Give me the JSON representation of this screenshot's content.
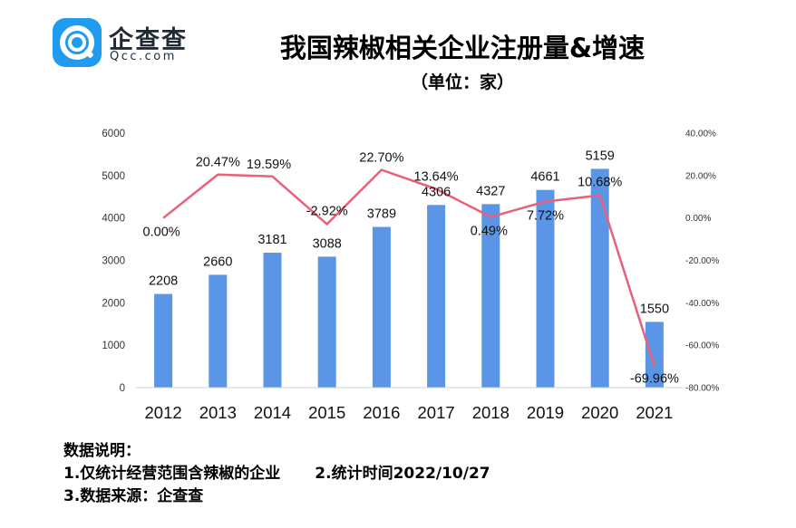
{
  "brand": {
    "name_cn": "企查查",
    "name_en": "Qcc.com"
  },
  "header": {
    "title": "我国辣椒相关企业注册量&增速",
    "subtitle": "（单位：家）"
  },
  "chart_data": {
    "type": "bar",
    "categories": [
      "2012",
      "2013",
      "2014",
      "2015",
      "2016",
      "2017",
      "2018",
      "2019",
      "2020",
      "2021"
    ],
    "series": [
      {
        "values": [
          2208,
          2660,
          3181,
          3088,
          3789,
          4306,
          4327,
          4661,
          5159,
          1550
        ],
        "color": "#5b95e5",
        "labels": [
          "2208",
          "2660",
          "3181",
          "3088",
          "3789",
          "4306",
          "4327",
          "4661",
          "5159",
          "1550"
        ]
      },
      {
        "type": "line",
        "values": [
          0.0,
          20.47,
          19.59,
          -2.92,
          22.7,
          13.64,
          0.49,
          7.72,
          10.68,
          -69.96
        ],
        "color": "#e8607a",
        "labels": [
          "0.00%",
          "20.47%",
          "19.59%",
          "-2.92%",
          "22.70%",
          "13.64%",
          "0.49%",
          "7.72%",
          "10.68%",
          "-69.96%"
        ]
      }
    ],
    "left_axis": {
      "ylim": [
        0,
        6000
      ],
      "ticks": [
        "0",
        "1000",
        "2000",
        "3000",
        "4000",
        "5000",
        "6000"
      ]
    },
    "right_axis": {
      "ylim": [
        -80,
        40
      ],
      "ticks": [
        "-80.00%",
        "-60.00%",
        "-40.00%",
        "-20.00%",
        "0.00%",
        "20.00%",
        "40.00%"
      ]
    },
    "grid": false,
    "legend": "none"
  },
  "notes": {
    "heading": "数据说明：",
    "item1": "1.仅统计经营范围含辣椒的企业",
    "item2": "2.统计时间2022/10/27",
    "item3": "3.数据来源：企查查"
  }
}
